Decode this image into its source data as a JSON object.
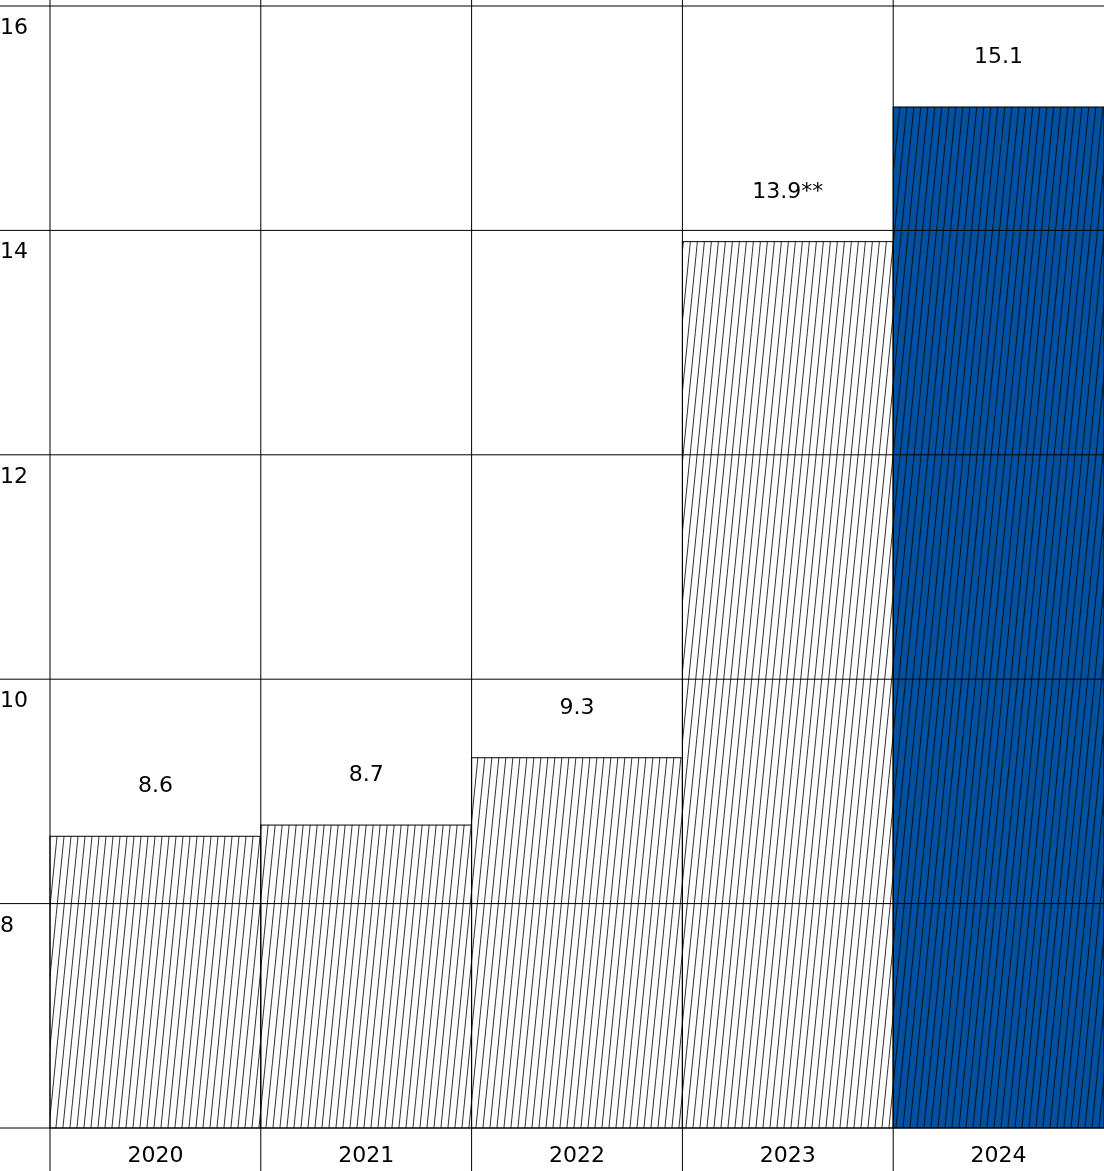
{
  "chart_data": {
    "type": "bar",
    "categories": [
      "2020",
      "2021",
      "2022",
      "2023",
      "2024"
    ],
    "values": [
      8.6,
      8.7,
      9.3,
      13.9,
      15.1
    ],
    "value_labels": [
      "8.6",
      "8.7",
      "9.3",
      "13.9**",
      "15.1"
    ],
    "colors": [
      "#ffffff",
      "#ffffff",
      "#ffffff",
      "#ffffff",
      "#0052a0"
    ],
    "ylim": [
      6,
      16
    ],
    "yticks": [
      {
        "value": 6,
        "label": null
      },
      8,
      10,
      12,
      14,
      16
    ],
    "grid": true
  }
}
